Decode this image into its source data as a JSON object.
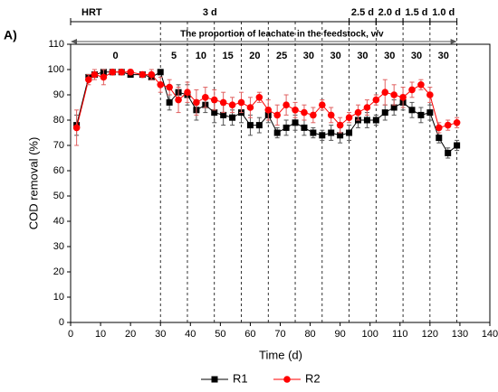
{
  "chart_data": {
    "type": "line",
    "panel_label": "A)",
    "xlabel": "Time (d)",
    "ylabel": "COD removal (%)",
    "xlim": [
      0,
      140
    ],
    "xticks": [
      0,
      10,
      20,
      30,
      40,
      50,
      60,
      70,
      80,
      90,
      100,
      110,
      120,
      130,
      140
    ],
    "ylim": [
      0,
      110
    ],
    "yticks": [
      0,
      10,
      20,
      30,
      40,
      50,
      60,
      70,
      80,
      90,
      100,
      110
    ],
    "x": [
      2,
      6,
      8,
      11,
      14,
      17,
      20,
      24,
      27,
      30,
      33,
      36,
      39,
      42,
      45,
      48,
      51,
      54,
      57,
      60,
      63,
      66,
      69,
      72,
      75,
      78,
      81,
      84,
      87,
      90,
      93,
      96,
      99,
      102,
      105,
      108,
      111,
      114,
      117,
      120,
      123,
      126,
      129
    ],
    "series": [
      {
        "name": "R1",
        "color": "#000000",
        "marker": "square",
        "values": [
          78,
          97,
          98,
          99,
          99,
          99,
          98,
          98,
          97,
          99,
          87,
          91,
          90,
          84,
          86,
          83,
          82,
          81,
          83,
          78,
          78,
          82,
          75,
          77,
          79,
          77,
          75,
          74,
          75,
          74,
          75,
          80,
          80,
          80,
          83,
          85,
          87,
          84,
          82,
          83,
          73,
          67,
          70
        ],
        "errors": [
          4,
          1,
          1,
          1,
          1,
          1,
          1,
          1,
          1,
          1,
          3,
          3,
          4,
          4,
          3,
          4,
          4,
          3,
          4,
          4,
          3,
          3,
          2,
          3,
          3,
          3,
          2,
          2,
          3,
          3,
          3,
          3,
          3,
          2,
          3,
          3,
          3,
          3,
          3,
          3,
          2,
          2,
          2
        ]
      },
      {
        "name": "R2",
        "color": "#ff0000",
        "marker": "circle",
        "values": [
          77,
          96,
          98,
          97,
          99,
          99,
          99,
          98,
          98,
          94,
          93,
          88,
          91,
          87,
          89,
          88,
          87,
          86,
          87,
          85,
          89,
          84,
          82,
          86,
          84,
          83,
          82,
          86,
          82,
          78,
          81,
          83,
          85,
          88,
          91,
          90,
          89,
          92,
          94,
          90,
          77,
          78,
          79
        ],
        "errors": [
          7,
          2,
          2,
          3,
          1,
          1,
          1,
          1,
          2,
          3,
          3,
          5,
          4,
          5,
          4,
          4,
          4,
          3,
          4,
          4,
          2,
          4,
          4,
          4,
          3,
          3,
          3,
          2,
          3,
          3,
          2,
          3,
          3,
          2,
          5,
          4,
          4,
          3,
          2,
          3,
          2,
          2,
          2
        ]
      }
    ],
    "hrt": {
      "label": "HRT",
      "segments": [
        {
          "label": "3 d",
          "start": 0,
          "end": 93
        },
        {
          "label": "2.5 d",
          "start": 93,
          "end": 102
        },
        {
          "label": "2.0 d",
          "start": 102,
          "end": 111
        },
        {
          "label": "1.5 d",
          "start": 111,
          "end": 120
        },
        {
          "label": "1.0 d",
          "start": 120,
          "end": 129
        }
      ]
    },
    "proportion": {
      "label": "The proportion of leachate in the feedstock, v/v",
      "segments": [
        {
          "label": "0",
          "start": 0,
          "end": 30
        },
        {
          "label": "5",
          "start": 30,
          "end": 39
        },
        {
          "label": "10",
          "start": 39,
          "end": 48
        },
        {
          "label": "15",
          "start": 48,
          "end": 57
        },
        {
          "label": "20",
          "start": 57,
          "end": 66
        },
        {
          "label": "25",
          "start": 66,
          "end": 75
        },
        {
          "label": "30",
          "start": 75,
          "end": 84
        },
        {
          "label": "30",
          "start": 84,
          "end": 93
        },
        {
          "label": "30",
          "start": 93,
          "end": 102
        },
        {
          "label": "30",
          "start": 102,
          "end": 111
        },
        {
          "label": "30",
          "start": 111,
          "end": 120
        },
        {
          "label": "30",
          "start": 120,
          "end": 129
        }
      ]
    }
  }
}
